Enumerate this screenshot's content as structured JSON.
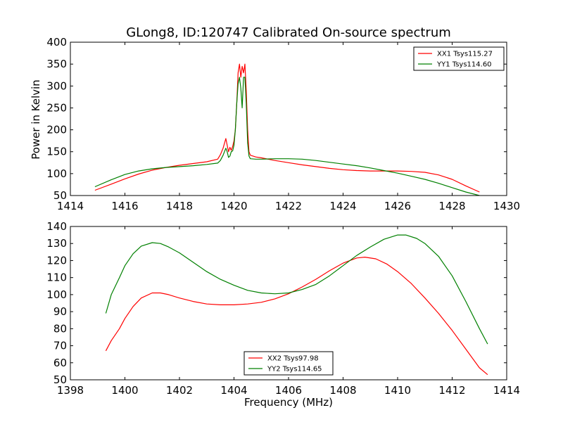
{
  "chart_data": [
    {
      "type": "line",
      "title": "GLong8, ID:120747 Calibrated On-source spectrum",
      "xlabel": "",
      "ylabel": "Power in Kelvin",
      "xlim": [
        1414,
        1430
      ],
      "ylim": [
        50,
        400
      ],
      "xticks": [
        1414,
        1416,
        1418,
        1420,
        1422,
        1424,
        1426,
        1428,
        1430
      ],
      "yticks": [
        50,
        100,
        150,
        200,
        250,
        300,
        350,
        400
      ],
      "legend_position": "top-right",
      "series": [
        {
          "name": "XX1 Tsys115.27",
          "color": "#ff0000",
          "x": [
            1414.9,
            1415.5,
            1416.0,
            1416.5,
            1417.0,
            1417.5,
            1418.0,
            1418.5,
            1419.0,
            1419.4,
            1419.5,
            1419.6,
            1419.7,
            1419.8,
            1419.85,
            1419.9,
            1419.95,
            1420.0,
            1420.05,
            1420.1,
            1420.15,
            1420.2,
            1420.25,
            1420.3,
            1420.35,
            1420.4,
            1420.45,
            1420.5,
            1420.55,
            1420.6,
            1420.8,
            1421.0,
            1421.5,
            1422.0,
            1422.5,
            1423.0,
            1423.5,
            1424.0,
            1424.5,
            1425.0,
            1425.5,
            1426.0,
            1426.5,
            1427.0,
            1427.5,
            1428.0,
            1428.5,
            1429.0
          ],
          "y": [
            62,
            76,
            88,
            99,
            108,
            114,
            119,
            123,
            127,
            133,
            143,
            158,
            180,
            150,
            160,
            153,
            162,
            175,
            200,
            260,
            330,
            350,
            320,
            345,
            330,
            350,
            290,
            200,
            150,
            142,
            138,
            136,
            130,
            125,
            120,
            116,
            112,
            109,
            107,
            106,
            106,
            106,
            105,
            103,
            97,
            87,
            72,
            58
          ]
        },
        {
          "name": "YY1 Tsys114.60",
          "color": "#008000",
          "x": [
            1414.9,
            1415.5,
            1416.0,
            1416.5,
            1417.0,
            1417.5,
            1418.0,
            1418.5,
            1419.0,
            1419.4,
            1419.5,
            1419.6,
            1419.7,
            1419.75,
            1419.8,
            1419.85,
            1419.9,
            1419.95,
            1420.0,
            1420.05,
            1420.1,
            1420.15,
            1420.2,
            1420.25,
            1420.3,
            1420.35,
            1420.4,
            1420.45,
            1420.5,
            1420.55,
            1420.6,
            1420.8,
            1421.0,
            1421.5,
            1422.0,
            1422.5,
            1423.0,
            1423.5,
            1424.0,
            1424.5,
            1425.0,
            1425.5,
            1426.0,
            1426.5,
            1427.0,
            1427.5,
            1428.0,
            1428.5,
            1429.0
          ],
          "y": [
            70,
            86,
            98,
            106,
            111,
            114,
            116,
            118,
            121,
            124,
            130,
            142,
            158,
            150,
            137,
            140,
            150,
            152,
            165,
            200,
            260,
            305,
            320,
            295,
            250,
            320,
            320,
            260,
            170,
            140,
            134,
            133,
            133,
            134,
            134,
            133,
            130,
            126,
            122,
            118,
            113,
            107,
            101,
            94,
            87,
            78,
            68,
            58,
            50
          ]
        }
      ]
    },
    {
      "type": "line",
      "title": "",
      "xlabel": "Frequency (MHz)",
      "ylabel": "",
      "xlim": [
        1398,
        1414
      ],
      "ylim": [
        50,
        140
      ],
      "xticks": [
        1398,
        1400,
        1402,
        1404,
        1406,
        1408,
        1410,
        1412,
        1414
      ],
      "yticks": [
        50,
        60,
        70,
        80,
        90,
        100,
        110,
        120,
        130,
        140
      ],
      "legend_position": "bottom-center",
      "series": [
        {
          "name": "XX2 Tsys97.98",
          "color": "#ff0000",
          "x": [
            1399.3,
            1399.5,
            1399.8,
            1400.0,
            1400.3,
            1400.6,
            1401.0,
            1401.3,
            1401.6,
            1402.0,
            1402.5,
            1403.0,
            1403.5,
            1404.0,
            1404.5,
            1405.0,
            1405.5,
            1406.0,
            1406.5,
            1407.0,
            1407.5,
            1408.0,
            1408.5,
            1408.8,
            1409.2,
            1409.6,
            1410.0,
            1410.5,
            1411.0,
            1411.5,
            1412.0,
            1412.5,
            1413.0,
            1413.3
          ],
          "y": [
            67,
            73,
            80,
            86,
            93,
            98,
            101,
            101,
            100,
            98,
            96,
            94.5,
            94,
            94,
            94.5,
            95.5,
            97.5,
            100.5,
            104.5,
            109,
            114,
            118.5,
            121.5,
            122,
            121,
            118,
            113.5,
            106.5,
            98,
            89,
            79,
            68,
            57,
            53
          ]
        },
        {
          "name": "YY2 Tsys114.65",
          "color": "#008000",
          "x": [
            1399.3,
            1399.5,
            1399.8,
            1400.0,
            1400.3,
            1400.6,
            1401.0,
            1401.3,
            1401.6,
            1402.0,
            1402.5,
            1403.0,
            1403.5,
            1404.0,
            1404.5,
            1405.0,
            1405.5,
            1406.0,
            1406.5,
            1407.0,
            1407.5,
            1408.0,
            1408.5,
            1409.0,
            1409.5,
            1410.0,
            1410.3,
            1410.7,
            1411.0,
            1411.5,
            1412.0,
            1412.5,
            1413.0,
            1413.3
          ],
          "y": [
            89,
            100,
            110,
            117,
            124,
            128.5,
            130.5,
            130,
            128,
            124.5,
            119,
            113.5,
            109,
            105.5,
            102.5,
            101,
            100.5,
            101,
            103,
            106,
            111,
            117,
            123,
            128,
            132.5,
            135,
            135,
            133,
            130,
            122.5,
            111,
            96,
            80,
            71
          ]
        }
      ]
    }
  ]
}
